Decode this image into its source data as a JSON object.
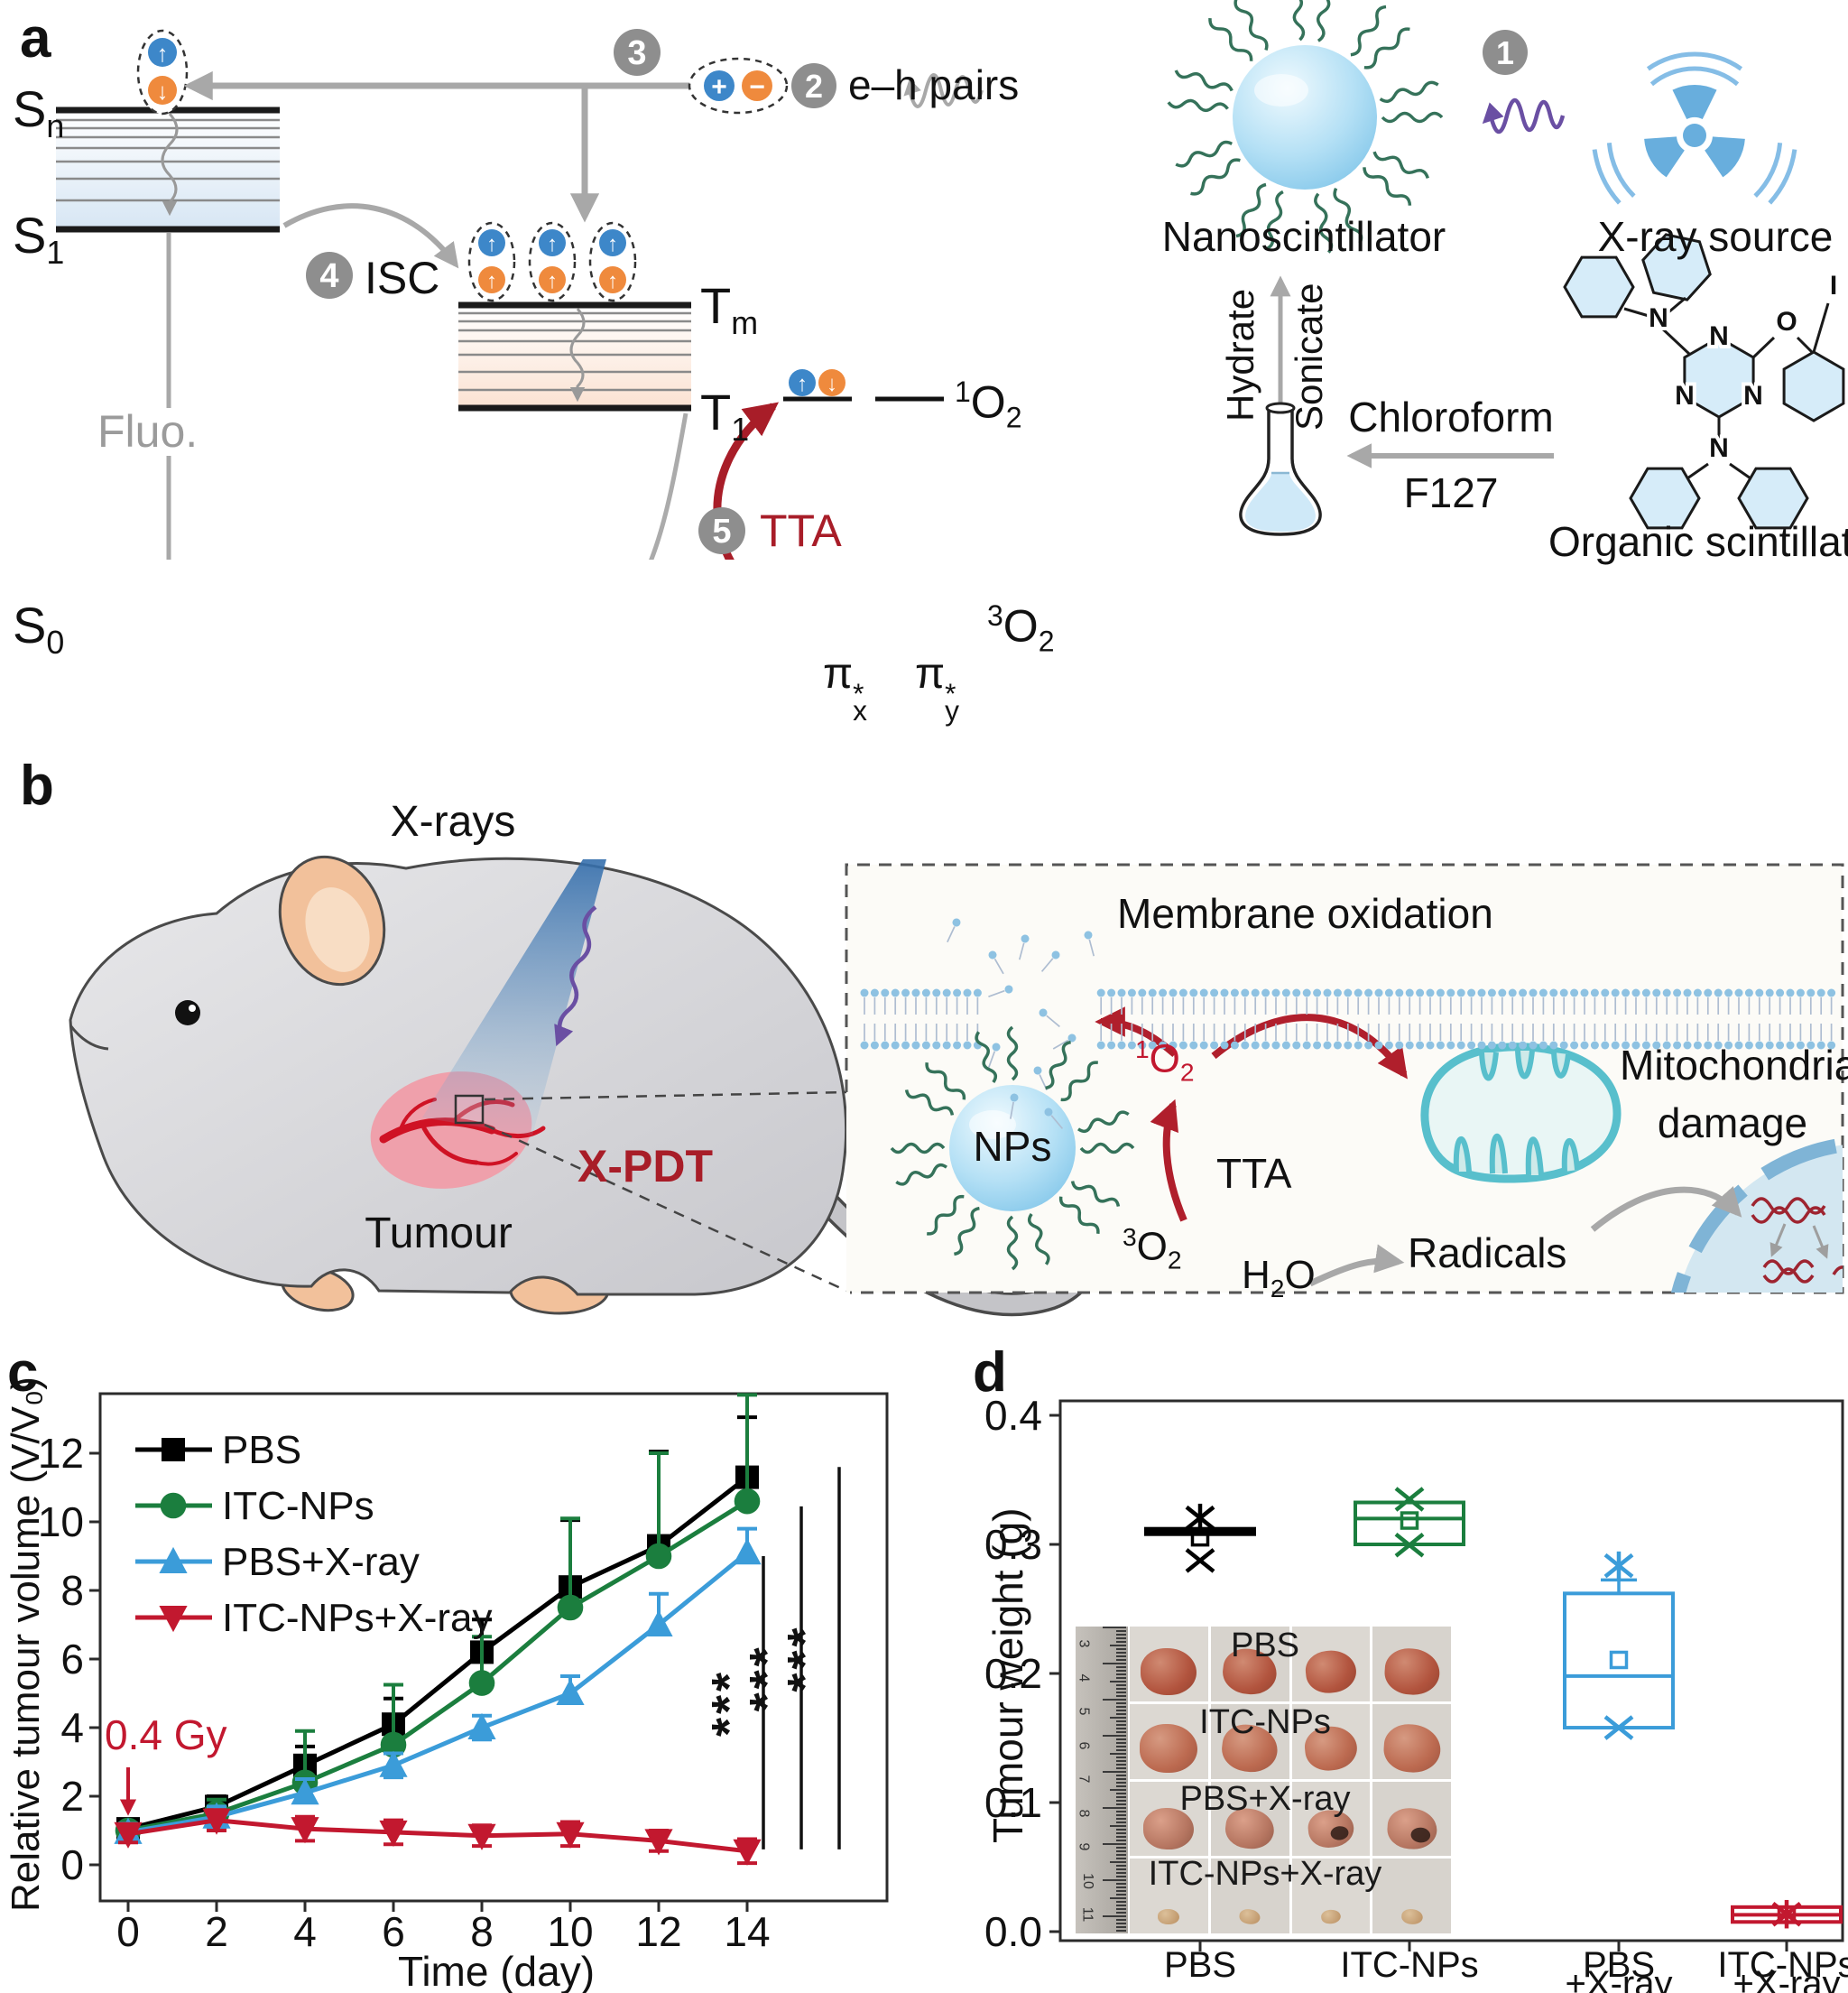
{
  "figure": {
    "panels": [
      "a",
      "b",
      "c",
      "d"
    ]
  },
  "panel_a": {
    "label": "a",
    "levels": {
      "s_n": "S<sub>n</sub>",
      "s_1": "S<sub>1</sub>",
      "s_0": "S<sub>0</sub>",
      "t_m": "T<sub>m</sub>",
      "t_1": "T<sub>1</sub>"
    },
    "fluo": "Fluo.",
    "isc": "ISC",
    "tta": "TTA",
    "steps": {
      "one": "1",
      "two": "2",
      "three": "3",
      "four": "4",
      "five": "5"
    },
    "eh_pairs": "e–h pairs",
    "singlet_oxygen": "<sup>1</sup>O<sub>2</sub>",
    "triplet_oxygen": "<sup>3</sup>O<sub>2</sub>",
    "pi_x": "π<span class=\"stk\"><span>*</span><span>x</span></span>",
    "pi_y": "π<span class=\"stk\"><span>*</span><span>y</span></span>",
    "nanoscintillator": "Nanoscintillator",
    "xray_source": "X-ray source",
    "hydrate": "Hydrate",
    "sonicate": "Sonicate",
    "chloroform": "Chloroform",
    "f127": "F127",
    "organic_scintillator": "Organic scintillator",
    "atoms": {
      "n": "N",
      "o": "O",
      "i": "I"
    },
    "icons": {
      "spin_up": "↑",
      "spin_down": "↓",
      "plus": "+",
      "minus": "−"
    }
  },
  "panel_b": {
    "label": "b",
    "xrays": "X-rays",
    "tumour": "Tumour",
    "xpdt": "X-PDT",
    "membrane_oxidation": "Membrane oxidation",
    "nps": "NPs",
    "tta": "TTA",
    "singlet_oxygen": "<sup>1</sup>O<sub>2</sub>",
    "triplet_oxygen": "<sup>3</sup>O<sub>2</sub>",
    "h2o": "H<sub>2</sub>O",
    "radicals": "Radicals",
    "mitochondrial": "Mitochondrial",
    "damage": "damage"
  },
  "panel_c": {
    "label": "c"
  },
  "panel_d": {
    "label": "d",
    "inset": {
      "rows": [
        "PBS",
        "ITC-NPs",
        "PBS+X-ray",
        "ITC-NPs+X-ray"
      ],
      "ruler_numbers": [
        "3",
        "4",
        "5",
        "6",
        "7",
        "8",
        "9",
        "10",
        "11"
      ]
    }
  },
  "chart_data": [
    {
      "type": "line",
      "title": "",
      "xlabel": "Time (day)",
      "ylabel": "Relative tumour volume (V/V₀)",
      "annotation": "0.4 Gy",
      "x": [
        0,
        2,
        4,
        6,
        8,
        10,
        12,
        14
      ],
      "yticks": [
        0,
        2,
        4,
        6,
        8,
        10,
        12
      ],
      "xlim": [
        -1.1,
        16.8
      ],
      "ylim": [
        -1.05,
        14.8
      ],
      "grid": false,
      "legend_position": "upper-left",
      "series": [
        {
          "name": "PBS",
          "color": "#000000",
          "marker": "square",
          "err_style": "upper",
          "values": [
            1.05,
            1.7,
            2.9,
            4.1,
            6.2,
            8.1,
            9.3,
            11.3
          ],
          "err": [
            0.2,
            0.3,
            0.55,
            0.75,
            0.95,
            1.95,
            2.75,
            1.75
          ]
        },
        {
          "name": "ITC-NPs",
          "color": "#1b7e3e",
          "marker": "circle",
          "err_style": "upper",
          "values": [
            1.0,
            1.5,
            2.4,
            3.5,
            5.3,
            7.5,
            9.0,
            10.6
          ],
          "err": [
            0.2,
            0.4,
            1.5,
            1.75,
            1.35,
            2.6,
            3.0,
            3.1
          ]
        },
        {
          "name": "PBS+X-ray",
          "color": "#3b9cd9",
          "marker": "triangle-up",
          "err_style": "upper",
          "values": [
            0.95,
            1.4,
            2.1,
            2.9,
            4.0,
            5.0,
            7.0,
            9.1
          ],
          "err": [
            0.25,
            0.3,
            0.4,
            0.35,
            0.35,
            0.5,
            0.9,
            0.7
          ]
        },
        {
          "name": "ITC-NPs+X-ray",
          "color": "#c2182f",
          "marker": "triangle-down",
          "err_style": "both",
          "values": [
            0.9,
            1.3,
            1.05,
            0.95,
            0.85,
            0.9,
            0.7,
            0.4
          ],
          "err": [
            0.25,
            0.3,
            0.35,
            0.35,
            0.3,
            0.35,
            0.3,
            0.35
          ]
        }
      ],
      "significance": [
        {
          "label": "***",
          "y_top": 9.0,
          "y_bottom": 0.45
        },
        {
          "label": "***",
          "y_top": 10.45,
          "y_bottom": 0.45
        },
        {
          "label": "***",
          "y_top": 11.6,
          "y_bottom": 0.45
        }
      ]
    },
    {
      "type": "box",
      "ylabel": "Tumour weight (g)",
      "yticks": [
        "0.0",
        "0.1",
        "0.2",
        "0.3",
        "0.4"
      ],
      "ylim": [
        -0.007,
        0.411
      ],
      "categories": [
        [
          "PBS"
        ],
        [
          "ITC-NPs"
        ],
        [
          "PBS",
          "+X-ray"
        ],
        [
          "ITC-NPs",
          "+X-ray"
        ]
      ],
      "boxes": [
        {
          "name": "PBS",
          "color": "#000000",
          "style": "solid",
          "q1": 0.3065,
          "median": 0.31,
          "q3": 0.3135,
          "mean": 0.3055,
          "marks": [
            {
              "type": "asterisk",
              "v": 0.3205
            },
            {
              "type": "x",
              "v": 0.2875
            }
          ]
        },
        {
          "name": "ITC-NPs",
          "color": "#1b7e3e",
          "style": "open",
          "q1": 0.3,
          "median": 0.32,
          "q3": 0.3325,
          "mean": 0.3185,
          "marks": [
            {
              "type": "x",
              "v": 0.335
            },
            {
              "type": "x",
              "v": 0.2995
            }
          ]
        },
        {
          "name": "PBS+X-ray",
          "color": "#3b9cd9",
          "style": "open",
          "q1": 0.158,
          "median": 0.198,
          "q3": 0.262,
          "mean": 0.2105,
          "whisker_top": 0.2725,
          "marks": [
            {
              "type": "asterisk",
              "v": 0.2835
            },
            {
              "type": "x",
              "v": 0.158
            }
          ]
        },
        {
          "name": "ITC-NPs+X-ray",
          "color": "#c2182f",
          "style": "open",
          "q1": 0.0075,
          "median": 0.013,
          "q3": 0.019,
          "mean": 0.013,
          "marks": [
            {
              "type": "asterisk",
              "v": 0.0135
            }
          ]
        }
      ]
    }
  ]
}
